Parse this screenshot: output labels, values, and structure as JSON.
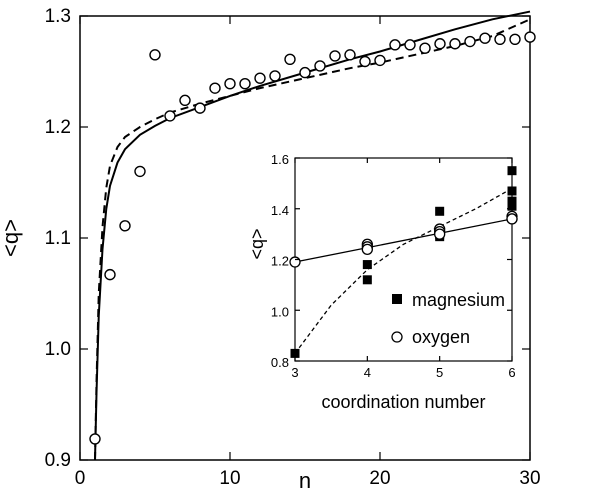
{
  "chart_data": [
    {
      "type": "scatter",
      "xlabel": "n",
      "ylabel": "<q>",
      "xlim": [
        0,
        30
      ],
      "ylim": [
        0.9,
        1.3
      ],
      "x_ticks": [
        0,
        10,
        20,
        30
      ],
      "x_tick_labels": [
        "0",
        "10",
        "20",
        "30"
      ],
      "y_ticks": [
        0.9,
        1.0,
        1.1,
        1.2,
        1.3
      ],
      "y_tick_labels": [
        "0.9",
        "1.0",
        "1.1",
        "1.2",
        "1.3"
      ],
      "grid": false,
      "series": [
        {
          "marker": "open-circle",
          "x": [
            1,
            2,
            3,
            4,
            5,
            6,
            7,
            8,
            9,
            10,
            11,
            12,
            13,
            14,
            15,
            16,
            17,
            18,
            19,
            20,
            21,
            22,
            23,
            24,
            25,
            26,
            27,
            28,
            29,
            30
          ],
          "y": [
            0.919,
            1.067,
            1.111,
            1.16,
            1.265,
            1.21,
            1.224,
            1.217,
            1.235,
            1.239,
            1.239,
            1.244,
            1.246,
            1.261,
            1.249,
            1.255,
            1.264,
            1.265,
            1.259,
            1.26,
            1.274,
            1.274,
            1.271,
            1.275,
            1.275,
            1.277,
            1.28,
            1.279,
            1.279,
            1.281
          ]
        },
        {
          "line_style": "solid",
          "x": [
            1.0,
            1.1,
            1.25,
            1.5,
            1.75,
            2,
            2.5,
            3,
            4,
            5,
            6,
            8,
            10,
            12,
            15,
            18,
            20,
            22,
            25,
            27.5,
            30
          ],
          "y": [
            0.9,
            0.96,
            1.03,
            1.09,
            1.126,
            1.147,
            1.168,
            1.18,
            1.193,
            1.201,
            1.208,
            1.218,
            1.228,
            1.237,
            1.249,
            1.261,
            1.268,
            1.276,
            1.288,
            1.297,
            1.304
          ]
        },
        {
          "line_style": "dashed",
          "x": [
            1.0,
            1.1,
            1.25,
            1.5,
            1.75,
            2,
            2.5,
            3,
            4,
            5,
            6,
            8,
            10,
            12,
            15,
            18,
            20,
            22,
            25,
            27.5,
            30
          ],
          "y": [
            0.9,
            0.97,
            1.05,
            1.11,
            1.145,
            1.165,
            1.182,
            1.191,
            1.2,
            1.207,
            1.213,
            1.221,
            1.228,
            1.235,
            1.244,
            1.253,
            1.258,
            1.264,
            1.273,
            1.282,
            1.297
          ]
        }
      ]
    },
    {
      "type": "scatter",
      "xlabel": "coordination number",
      "ylabel": "<q>",
      "xlim": [
        3,
        6
      ],
      "ylim": [
        0.8,
        1.6
      ],
      "x_ticks": [
        3,
        4,
        5,
        6
      ],
      "x_tick_labels": [
        "3",
        "4",
        "5",
        "6"
      ],
      "y_ticks": [
        0.8,
        1.0,
        1.2,
        1.4,
        1.6
      ],
      "y_tick_labels": [
        "0.8",
        "1.0",
        "1.2",
        "1.4",
        "1.6"
      ],
      "grid": false,
      "legend_position": "bottom-right",
      "series": [
        {
          "name": "magnesium",
          "marker": "filled-square",
          "points": [
            [
              3,
              0.83
            ],
            [
              4,
              1.18
            ],
            [
              4,
              1.12
            ],
            [
              5,
              1.39
            ],
            [
              5,
              1.31
            ],
            [
              5,
              1.3
            ],
            [
              5,
              1.29
            ],
            [
              6,
              1.55
            ],
            [
              6,
              1.47
            ],
            [
              6,
              1.43
            ],
            [
              6,
              1.42
            ],
            [
              6,
              1.41
            ]
          ]
        },
        {
          "name": "oxygen",
          "marker": "open-circle",
          "points": [
            [
              3,
              1.19
            ],
            [
              4,
              1.26
            ],
            [
              4,
              1.25
            ],
            [
              4,
              1.24
            ],
            [
              5,
              1.32
            ],
            [
              5,
              1.31
            ],
            [
              5,
              1.3
            ],
            [
              6,
              1.37
            ],
            [
              6,
              1.36
            ],
            [
              6,
              1.36
            ]
          ]
        },
        {
          "line_style": "solid",
          "x": [
            3,
            6
          ],
          "y": [
            1.19,
            1.36
          ]
        },
        {
          "line_style": "dashed",
          "x": [
            3,
            3.5,
            4,
            4.5,
            5,
            5.5,
            6
          ],
          "y": [
            0.83,
            1.02,
            1.16,
            1.26,
            1.33,
            1.4,
            1.48
          ]
        }
      ]
    }
  ]
}
